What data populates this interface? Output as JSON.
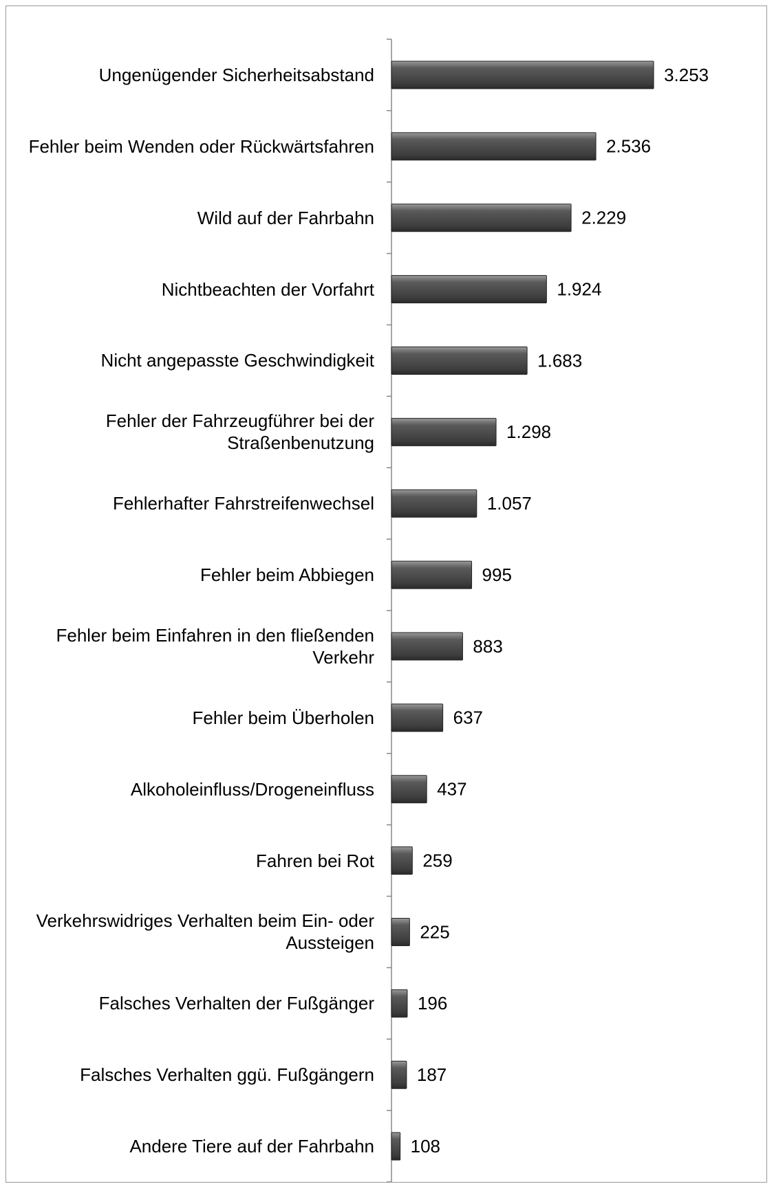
{
  "chart_data": {
    "type": "bar",
    "orientation": "horizontal",
    "categories": [
      "Ungenügender Sicherheitsabstand",
      "Fehler beim Wenden oder Rückwärtsfahren",
      "Wild auf der Fahrbahn",
      "Nichtbeachten der Vorfahrt",
      "Nicht angepasste Geschwindigkeit",
      "Fehler der Fahrzeugführer bei der Straßenbenutzung",
      "Fehlerhafter Fahrstreifenwechsel",
      "Fehler beim Abbiegen",
      "Fehler beim Einfahren in den fließenden Verkehr",
      "Fehler beim Überholen",
      "Alkoholeinfluss/Drogeneinfluss",
      "Fahren bei Rot",
      "Verkehrswidriges Verhalten beim Ein- oder Aussteigen",
      "Falsches Verhalten der Fußgänger",
      "Falsches Verhalten ggü. Fußgängern",
      "Andere Tiere auf der Fahrbahn"
    ],
    "values": [
      3253,
      2536,
      2229,
      1924,
      1683,
      1298,
      1057,
      995,
      883,
      637,
      437,
      259,
      225,
      196,
      187,
      108
    ],
    "value_labels": [
      "3.253",
      "2.536",
      "2.229",
      "1.924",
      "1.683",
      "1.298",
      "1.057",
      "995",
      "883",
      "637",
      "437",
      "259",
      "225",
      "196",
      "187",
      "108"
    ],
    "color": "#555555",
    "xlim": [
      0,
      3500
    ]
  }
}
